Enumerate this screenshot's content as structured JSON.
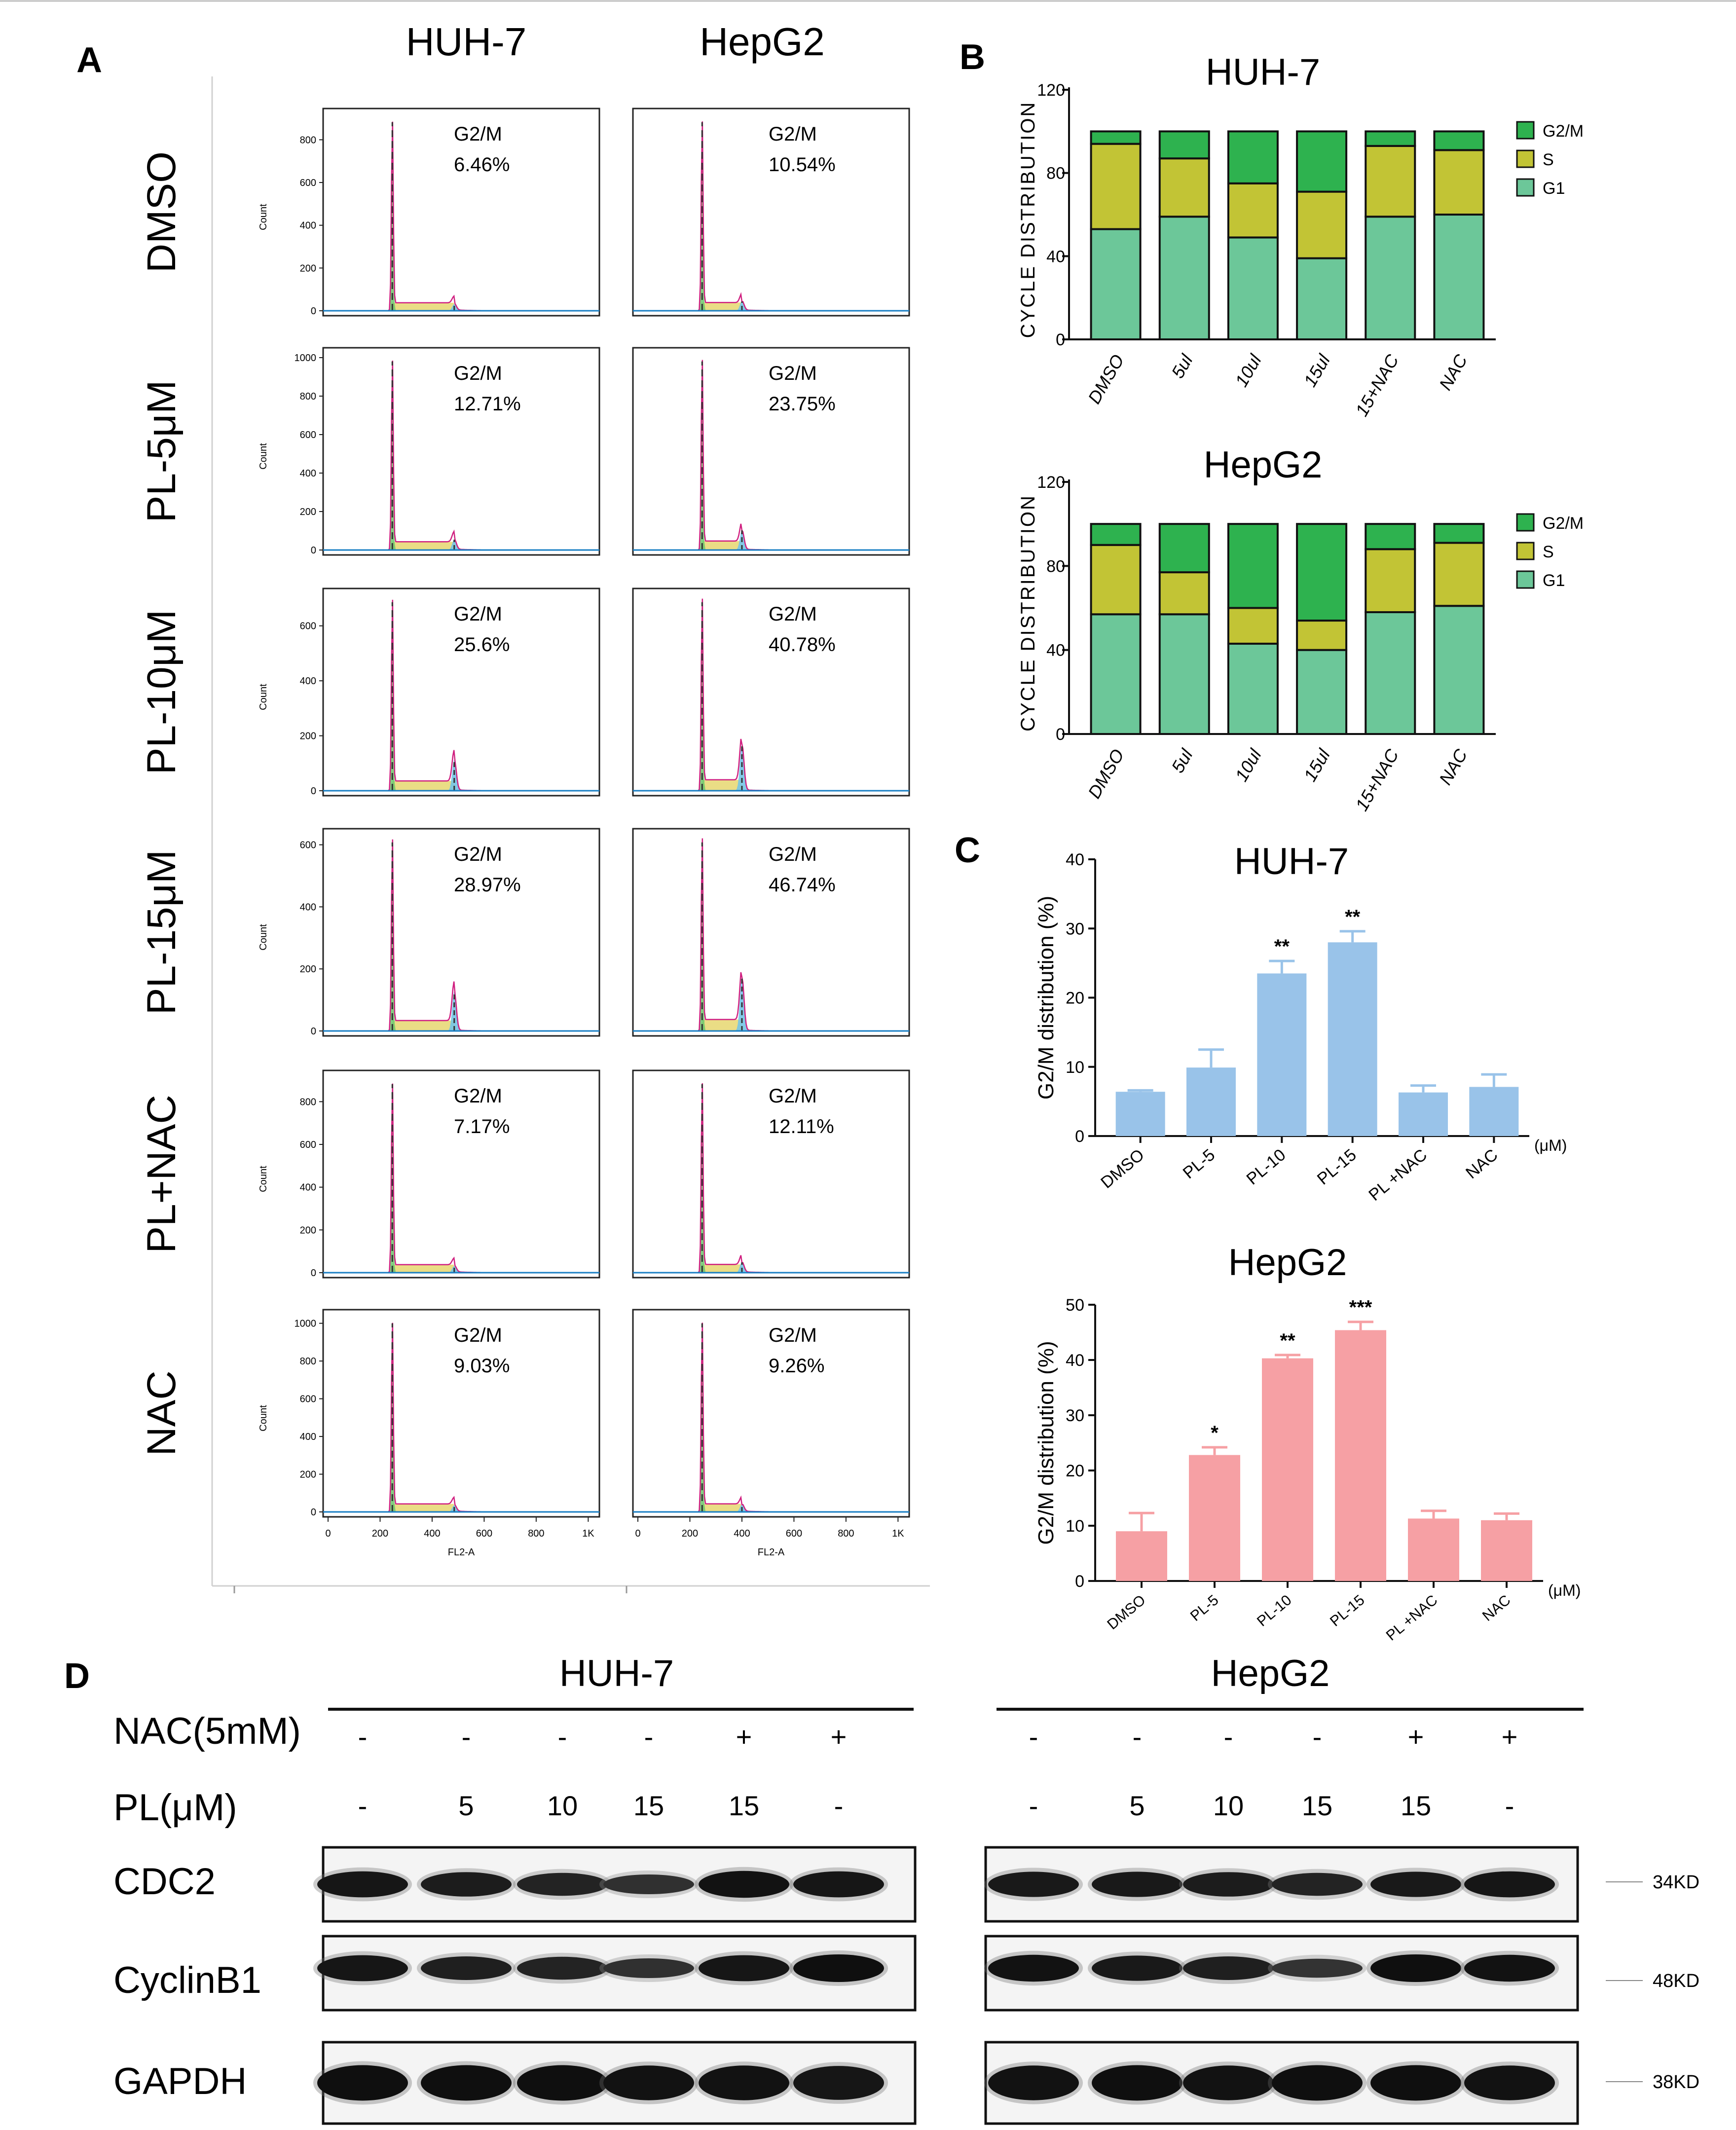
{
  "panel_labels": {
    "a": "A",
    "b": "B",
    "c": "C",
    "d": "D"
  },
  "flow": {
    "col_titles": [
      "HUH-7",
      "HepG2"
    ],
    "gate_label": "G2/M",
    "axis_count": "Count",
    "axis_x": "FL2-A",
    "x_ticks": [
      "0",
      "200",
      "400",
      "600",
      "800",
      "1K"
    ],
    "rows": [
      {
        "label": "DMSO",
        "ymax": 900,
        "yticks": [
          "0",
          "200",
          "400",
          "600",
          "800"
        ],
        "vals": [
          "6.46%",
          "10.54%"
        ],
        "g2": [
          0.06,
          0.09
        ]
      },
      {
        "label": "PL-5μM",
        "ymax": 1000,
        "yticks": [
          "0",
          "200",
          "400",
          "600",
          "800",
          "1000"
        ],
        "vals": [
          "12.71%",
          "23.75%"
        ],
        "g2": [
          0.1,
          0.19
        ]
      },
      {
        "label": "PL-10μM",
        "ymax": 700,
        "yticks": [
          "0",
          "200",
          "400",
          "600"
        ],
        "vals": [
          "25.6%",
          "40.78%"
        ],
        "g2": [
          0.3,
          0.45
        ]
      },
      {
        "label": "PL-15μM",
        "ymax": 620,
        "yticks": [
          "0",
          "200",
          "400",
          "600"
        ],
        "vals": [
          "28.97%",
          "46.74%"
        ],
        "g2": [
          0.38,
          0.52
        ]
      },
      {
        "label": "PL+NAC",
        "ymax": 900,
        "yticks": [
          "0",
          "200",
          "400",
          "600",
          "800"
        ],
        "vals": [
          "7.17%",
          "12.11%"
        ],
        "g2": [
          0.06,
          0.1
        ]
      },
      {
        "label": "NAC",
        "ymax": 1020,
        "yticks": [
          "0",
          "200",
          "400",
          "600",
          "800",
          "1000"
        ],
        "vals": [
          "9.03%",
          "9.26%"
        ],
        "g2": [
          0.06,
          0.07
        ]
      }
    ]
  },
  "chart_data": [
    {
      "type": "bar",
      "stacked": true,
      "title": "HUH-7",
      "ylabel": "CYCLE DISTRIBUTION",
      "ylim": [
        0,
        120
      ],
      "yticks": [
        "0",
        "40",
        "80",
        "120"
      ],
      "categories": [
        "DMSO",
        "5ul",
        "10ul",
        "15ul",
        "15+NAC",
        "NAC"
      ],
      "series": [
        {
          "name": "G1",
          "color": "#6cc799",
          "values": [
            53,
            59,
            49,
            39,
            59,
            60
          ]
        },
        {
          "name": "S",
          "color": "#c2c435",
          "values": [
            41,
            28,
            26,
            32,
            34,
            31
          ]
        },
        {
          "name": "G2/M",
          "color": "#2eb24f",
          "values": [
            6,
            13,
            25,
            29,
            7,
            9
          ]
        }
      ],
      "legend": [
        "G2/M",
        "S",
        "G1"
      ]
    },
    {
      "type": "bar",
      "stacked": true,
      "title": "HepG2",
      "ylabel": "CYCLE DISTRIBUTION",
      "ylim": [
        0,
        120
      ],
      "yticks": [
        "0",
        "40",
        "80",
        "120"
      ],
      "categories": [
        "DMSO",
        "5ul",
        "10ul",
        "15ul",
        "15+NAC",
        "NAC"
      ],
      "series": [
        {
          "name": "G1",
          "color": "#6cc799",
          "values": [
            57,
            57,
            43,
            40,
            58,
            61
          ]
        },
        {
          "name": "S",
          "color": "#c2c435",
          "values": [
            33,
            20,
            17,
            14,
            30,
            30
          ]
        },
        {
          "name": "G2/M",
          "color": "#2eb24f",
          "values": [
            10,
            23,
            40,
            46,
            12,
            9
          ]
        }
      ],
      "legend": [
        "G2/M",
        "S",
        "G1"
      ]
    },
    {
      "type": "bar",
      "title": "HUH-7",
      "ylabel": "G2/M distribution (%)",
      "ylim": [
        0,
        40
      ],
      "yticks": [
        "0",
        "10",
        "20",
        "30",
        "40"
      ],
      "color": "#99c3e9",
      "unit": "(μM)",
      "categories": [
        "DMSO",
        "PL-5",
        "PL-10",
        "PL-15",
        "PL +NAC",
        "NAC"
      ],
      "values": [
        6.4,
        9.9,
        23.5,
        28.0,
        6.3,
        7.1
      ],
      "errors": [
        0.2,
        2.6,
        1.8,
        1.6,
        1.0,
        1.8
      ],
      "sig": [
        "",
        "",
        "**",
        "**",
        "",
        ""
      ]
    },
    {
      "type": "bar",
      "title": "HepG2",
      "ylabel": "G2/M distribution (%)",
      "ylim": [
        0,
        50
      ],
      "yticks": [
        "0",
        "10",
        "20",
        "30",
        "40",
        "50"
      ],
      "color": "#f6a0a4",
      "unit": "(μM)",
      "categories": [
        "DMSO",
        "PL-5",
        "PL-10",
        "PL-15",
        "PL +NAC",
        "NAC"
      ],
      "values": [
        9.0,
        22.8,
        40.3,
        45.4,
        11.3,
        11.0
      ],
      "errors": [
        3.3,
        1.4,
        0.6,
        1.5,
        1.4,
        1.2
      ],
      "sig": [
        "",
        "*",
        "**",
        "***",
        "",
        ""
      ]
    }
  ],
  "western": {
    "titles": [
      "HUH-7",
      "HepG2"
    ],
    "nac_label": "NAC(5mM)",
    "pl_label": "PL(μM)",
    "nac": [
      "-",
      "-",
      "-",
      "-",
      "+",
      "+"
    ],
    "pl": [
      "-",
      "5",
      "10",
      "15",
      "15",
      "-"
    ],
    "rows": [
      {
        "name": "CDC2",
        "kd": "34KD",
        "huh": [
          0.9,
          0.8,
          0.7,
          0.5,
          0.95,
          0.9
        ],
        "hep": [
          0.85,
          0.85,
          0.8,
          0.7,
          0.85,
          0.9
        ]
      },
      {
        "name": "CyclinB1",
        "kd": "48KD",
        "huh": [
          0.9,
          0.75,
          0.7,
          0.5,
          0.9,
          1.0
        ],
        "hep": [
          0.95,
          0.85,
          0.75,
          0.45,
          1.0,
          0.95
        ]
      },
      {
        "name": "GAPDH",
        "kd": "38KD",
        "huh": [
          1.0,
          1.0,
          1.0,
          0.95,
          0.95,
          0.9
        ],
        "hep": [
          0.95,
          1.0,
          0.95,
          1.0,
          1.0,
          0.95
        ]
      }
    ]
  }
}
